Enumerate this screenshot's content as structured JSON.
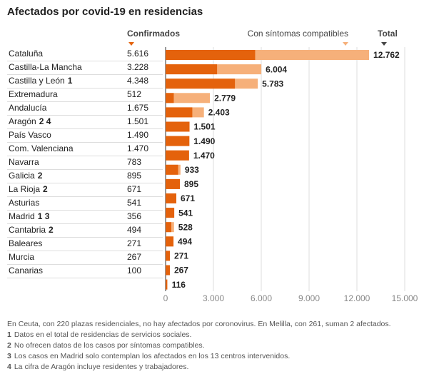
{
  "chart_data": {
    "type": "bar",
    "title": "Afectados por covid-19 en residencias",
    "categories": [
      "Cataluña",
      "Castilla-La Mancha",
      "Castilla y León",
      "Extremadura",
      "Andalucía",
      "Aragón",
      "País Vasco",
      "Com. Valenciana",
      "Navarra",
      "Galicia",
      "La Rioja",
      "Asturias",
      "Madrid",
      "Cantabria",
      "Baleares",
      "Murcia",
      "Canarias"
    ],
    "category_notes": [
      null,
      null,
      "1",
      null,
      null,
      "2 4",
      null,
      null,
      null,
      "2",
      "2",
      null,
      "1 3",
      "2",
      null,
      null,
      null
    ],
    "series": [
      {
        "name": "Confirmados",
        "color": "#e4620c",
        "values": [
          5616,
          3228,
          4348,
          512,
          1675,
          1501,
          1490,
          1470,
          783,
          895,
          671,
          541,
          356,
          494,
          271,
          267,
          100
        ],
        "value_labels": [
          "5.616",
          "3.228",
          "4.348",
          "512",
          "1.675",
          "1.501",
          "1.490",
          "1.470",
          "783",
          "895",
          "671",
          "541",
          "356",
          "494",
          "271",
          "267",
          "100"
        ]
      },
      {
        "name": "Total",
        "color": "#f6b07a",
        "values": [
          12762,
          6004,
          5783,
          2779,
          2403,
          1501,
          1490,
          1470,
          933,
          895,
          671,
          541,
          528,
          494,
          271,
          267,
          116
        ],
        "value_labels": [
          "12.762",
          "6.004",
          "5.783",
          "2.779",
          "2.403",
          "1.501",
          "1.490",
          "1.470",
          "933",
          "895",
          "671",
          "541",
          "528",
          "494",
          "271",
          "267",
          "116"
        ]
      }
    ],
    "band_label": "Con síntomas compatibles",
    "xlim": [
      0,
      15000
    ],
    "xticks": [
      0,
      {
        "value": 3000,
        "label": "3.000"
      },
      {
        "value": 6000,
        "label": "6.000"
      },
      {
        "value": 9000,
        "label": "9.000"
      },
      {
        "value": 12000,
        "label": "12.000"
      },
      {
        "value": 15000,
        "label": "15.000"
      }
    ],
    "grid": true,
    "footnote": "En Ceuta, con 220 plazas residenciales, no hay afectados por coronovirus. En Melilla, con 261, suman 2 afectados.",
    "notes": [
      {
        "marker": "1",
        "text": "Datos en el total de residencias de servicios sociales."
      },
      {
        "marker": "2",
        "text": "No ofrecen datos de los casos por síntomas compatibles."
      },
      {
        "marker": "3",
        "text": "Los casos en Madrid solo contemplan los afectados en los 13 centros intervenidos."
      },
      {
        "marker": "4",
        "text": "La cifra de Aragón incluye residentes y trabajadores."
      }
    ]
  }
}
